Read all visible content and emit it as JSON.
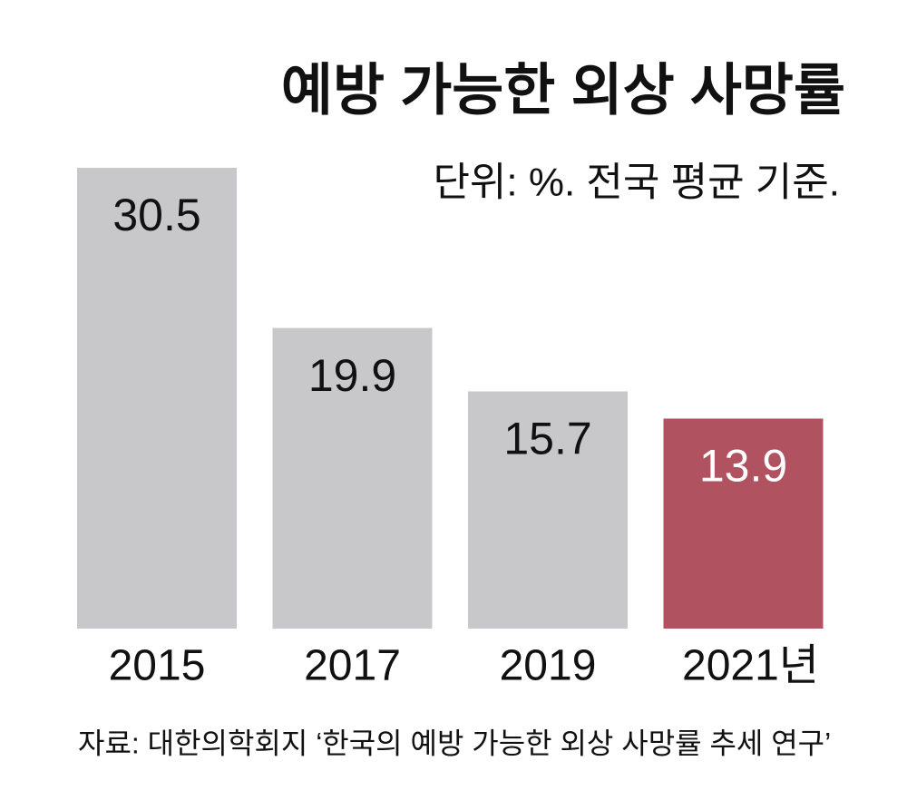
{
  "chart_data": {
    "type": "bar",
    "title": "예방 가능한 외상 사망률",
    "subtitle": "단위: %. 전국 평균 기준.",
    "categories": [
      "2015",
      "2017",
      "2019",
      "2021년"
    ],
    "values": [
      30.5,
      19.9,
      15.7,
      13.9
    ],
    "colors": [
      "#c8c8ca",
      "#c8c8ca",
      "#c8c8ca",
      "#b0525f"
    ],
    "source": "자료: 대한의학회지 ‘한국의 예방 가능한 외상 사망률 추세 연구’"
  }
}
